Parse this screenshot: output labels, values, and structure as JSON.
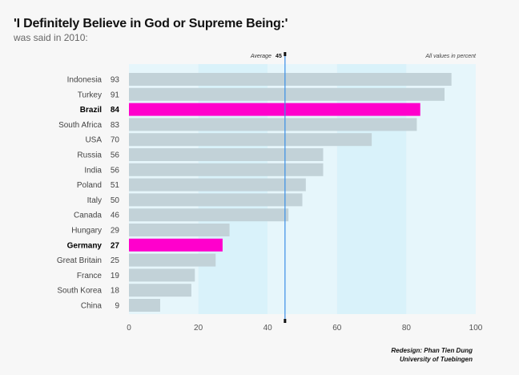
{
  "header": {
    "title": "'I Definitely Believe in God or Supreme Being:'",
    "subtitle": "was said in 2010:"
  },
  "annotations": {
    "average_label": "Average",
    "average_value": "45",
    "units_note": "All values in percent"
  },
  "credit": {
    "line1": "Redesign: Phan Tien Dung",
    "line2": "University of Tuebingen"
  },
  "colors": {
    "bar": "#c2d2d8",
    "highlight": "#ff00cc",
    "average_line": "#3a8ee6",
    "band_light": "#e6f6fb",
    "band_dark": "#d9f2fa"
  },
  "chart_data": {
    "type": "bar",
    "orientation": "horizontal",
    "categories": [
      "Indonesia",
      "Turkey",
      "Brazil",
      "South Africa",
      "USA",
      "Russia",
      "India",
      "Poland",
      "Italy",
      "Canada",
      "Hungary",
      "Germany",
      "Great Britain",
      "France",
      "South Korea",
      "China"
    ],
    "values": [
      93,
      91,
      84,
      83,
      70,
      56,
      56,
      51,
      50,
      46,
      29,
      27,
      25,
      19,
      18,
      9
    ],
    "highlighted": [
      "Brazil",
      "Germany"
    ],
    "average": 45,
    "xlim": [
      0,
      100
    ],
    "xticks": [
      0,
      20,
      40,
      60,
      80,
      100
    ],
    "grid": false
  }
}
